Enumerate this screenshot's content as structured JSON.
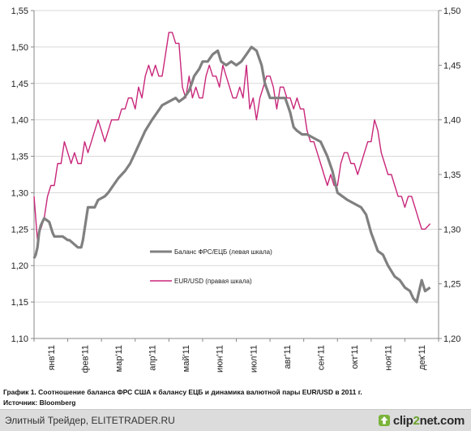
{
  "chart_data": {
    "type": "line",
    "title": "",
    "left_axis": {
      "ticks": [
        "1,10",
        "1,15",
        "1,20",
        "1,25",
        "1,30",
        "1,35",
        "1,40",
        "1,45",
        "1,50",
        "1,55"
      ],
      "range": [
        1.1,
        1.55
      ]
    },
    "right_axis": {
      "ticks": [
        "1,20",
        "1,25",
        "1,30",
        "1,35",
        "1,40",
        "1,45",
        "1,50"
      ],
      "range": [
        1.2,
        1.5
      ]
    },
    "x_tick_labels": [
      "янв'11",
      "фев'11",
      "мар'11",
      "апр'11",
      "май'11",
      "июн'11",
      "июл'11",
      "авг'11",
      "сен'11",
      "окт'11",
      "ноя'11",
      "дек'11"
    ],
    "x_range": [
      0,
      12
    ],
    "grid": true,
    "legend_placement": "center",
    "series": [
      {
        "name": "Баланс ФРС/ЕЦБ (левая шкала)",
        "axis": "left",
        "color": "#808080",
        "x": [
          0.0,
          0.05,
          0.1,
          0.15,
          0.2,
          0.3,
          0.45,
          0.55,
          0.6,
          0.85,
          1.0,
          1.05,
          1.3,
          1.4,
          1.45,
          1.6,
          1.8,
          1.9,
          2.1,
          2.2,
          2.35,
          2.5,
          2.7,
          2.85,
          3.0,
          3.15,
          3.3,
          3.5,
          3.65,
          3.8,
          4.0,
          4.2,
          4.3,
          4.45,
          4.6,
          4.75,
          4.9,
          5.0,
          5.15,
          5.3,
          5.45,
          5.55,
          5.7,
          5.85,
          6.0,
          6.15,
          6.3,
          6.45,
          6.6,
          6.75,
          6.85,
          7.0,
          7.1,
          7.2,
          7.3,
          7.45,
          7.6,
          7.7,
          7.8,
          7.95,
          8.1,
          8.3,
          8.5,
          8.7,
          8.85,
          9.0,
          9.15,
          9.3,
          9.5,
          9.7,
          9.85,
          10.0,
          10.2,
          10.35,
          10.5,
          10.7,
          10.85,
          11.0,
          11.15,
          11.25,
          11.35,
          11.4,
          11.5,
          11.6,
          11.75
        ],
        "values": [
          1.21,
          1.215,
          1.225,
          1.245,
          1.255,
          1.265,
          1.26,
          1.245,
          1.24,
          1.24,
          1.235,
          1.235,
          1.225,
          1.225,
          1.235,
          1.28,
          1.28,
          1.29,
          1.295,
          1.3,
          1.31,
          1.32,
          1.33,
          1.34,
          1.355,
          1.37,
          1.385,
          1.4,
          1.41,
          1.42,
          1.425,
          1.43,
          1.425,
          1.43,
          1.44,
          1.46,
          1.47,
          1.48,
          1.48,
          1.49,
          1.495,
          1.48,
          1.475,
          1.48,
          1.475,
          1.48,
          1.49,
          1.5,
          1.495,
          1.475,
          1.45,
          1.43,
          1.43,
          1.43,
          1.43,
          1.43,
          1.41,
          1.39,
          1.385,
          1.38,
          1.38,
          1.375,
          1.37,
          1.35,
          1.33,
          1.3,
          1.295,
          1.29,
          1.285,
          1.28,
          1.27,
          1.245,
          1.22,
          1.215,
          1.2,
          1.185,
          1.18,
          1.17,
          1.165,
          1.155,
          1.15,
          1.16,
          1.18,
          1.165,
          1.17
        ]
      },
      {
        "name": "EUR/USD (правая шкала)",
        "axis": "right",
        "color": "#c8267a",
        "x": [
          0.0,
          0.05,
          0.1,
          0.15,
          0.2,
          0.3,
          0.4,
          0.5,
          0.6,
          0.7,
          0.8,
          0.9,
          1.0,
          1.1,
          1.2,
          1.3,
          1.4,
          1.5,
          1.6,
          1.7,
          1.8,
          1.9,
          2.0,
          2.1,
          2.2,
          2.3,
          2.4,
          2.5,
          2.6,
          2.7,
          2.8,
          2.9,
          3.0,
          3.1,
          3.2,
          3.3,
          3.4,
          3.5,
          3.6,
          3.7,
          3.8,
          3.9,
          4.0,
          4.1,
          4.2,
          4.3,
          4.4,
          4.5,
          4.6,
          4.7,
          4.8,
          4.9,
          5.0,
          5.1,
          5.2,
          5.3,
          5.4,
          5.5,
          5.6,
          5.7,
          5.8,
          5.9,
          6.0,
          6.1,
          6.2,
          6.3,
          6.4,
          6.5,
          6.6,
          6.7,
          6.8,
          6.9,
          7.0,
          7.1,
          7.2,
          7.3,
          7.4,
          7.5,
          7.6,
          7.7,
          7.8,
          7.9,
          8.0,
          8.1,
          8.2,
          8.3,
          8.4,
          8.5,
          8.6,
          8.7,
          8.8,
          8.9,
          9.0,
          9.1,
          9.2,
          9.3,
          9.4,
          9.5,
          9.6,
          9.7,
          9.8,
          9.9,
          10.0,
          10.1,
          10.2,
          10.3,
          10.4,
          10.5,
          10.6,
          10.7,
          10.8,
          10.9,
          11.0,
          11.1,
          11.2,
          11.3,
          11.4,
          11.5,
          11.6,
          11.75
        ],
        "values": [
          1.33,
          1.31,
          1.29,
          1.3,
          1.3,
          1.31,
          1.33,
          1.34,
          1.34,
          1.36,
          1.36,
          1.38,
          1.37,
          1.36,
          1.37,
          1.36,
          1.36,
          1.38,
          1.37,
          1.38,
          1.39,
          1.4,
          1.39,
          1.38,
          1.39,
          1.4,
          1.4,
          1.4,
          1.41,
          1.41,
          1.42,
          1.42,
          1.41,
          1.43,
          1.42,
          1.44,
          1.45,
          1.44,
          1.45,
          1.44,
          1.44,
          1.46,
          1.48,
          1.48,
          1.47,
          1.47,
          1.43,
          1.42,
          1.44,
          1.42,
          1.43,
          1.42,
          1.42,
          1.44,
          1.45,
          1.44,
          1.44,
          1.43,
          1.45,
          1.44,
          1.43,
          1.42,
          1.42,
          1.43,
          1.42,
          1.45,
          1.41,
          1.42,
          1.4,
          1.42,
          1.43,
          1.44,
          1.44,
          1.43,
          1.41,
          1.43,
          1.43,
          1.42,
          1.42,
          1.41,
          1.42,
          1.41,
          1.41,
          1.39,
          1.38,
          1.38,
          1.37,
          1.36,
          1.35,
          1.34,
          1.35,
          1.34,
          1.34,
          1.36,
          1.37,
          1.37,
          1.36,
          1.36,
          1.35,
          1.36,
          1.37,
          1.38,
          1.38,
          1.4,
          1.39,
          1.37,
          1.36,
          1.35,
          1.35,
          1.34,
          1.33,
          1.33,
          1.32,
          1.33,
          1.33,
          1.32,
          1.31,
          1.3,
          1.3,
          1.305
        ]
      }
    ]
  },
  "caption": "График 1. Соотношение баланса ФРС США к балансу ЕЦБ и динамика валютной пары EUR/USD в 2011 г.",
  "source": "Источник: Bloomberg",
  "footer": {
    "site_text": "Элитный Трейдер, ELITETRADER.RU",
    "logo_text_a": "clip",
    "logo_text_b": "2",
    "logo_text_c": "net.com",
    "logo_color": "#6aa22a"
  }
}
